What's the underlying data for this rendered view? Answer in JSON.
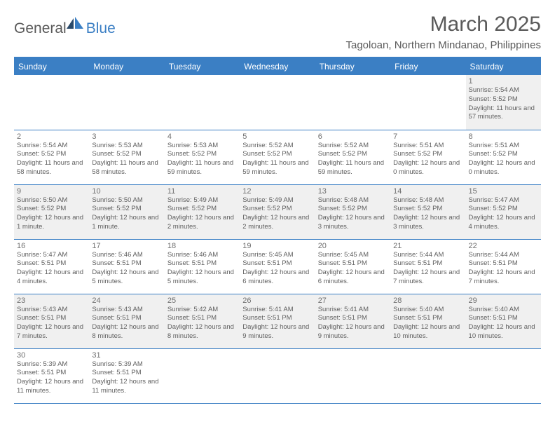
{
  "logo": {
    "text1": "General",
    "text2": "Blue"
  },
  "header": {
    "title": "March 2025",
    "location": "Tagoloan, Northern Mindanao, Philippines"
  },
  "colors": {
    "brand": "#3b7fc4",
    "header_bg": "#3b7fc4",
    "header_fg": "#ffffff",
    "row_alt_bg": "#f0f0f0",
    "text": "#5a5a5a",
    "cell_text": "#606060"
  },
  "calendar": {
    "day_headers": [
      "Sunday",
      "Monday",
      "Tuesday",
      "Wednesday",
      "Thursday",
      "Friday",
      "Saturday"
    ],
    "weeks": [
      [
        null,
        null,
        null,
        null,
        null,
        null,
        {
          "n": "1",
          "sunrise": "Sunrise: 5:54 AM",
          "sunset": "Sunset: 5:52 PM",
          "daylight": "Daylight: 11 hours and 57 minutes."
        }
      ],
      [
        {
          "n": "2",
          "sunrise": "Sunrise: 5:54 AM",
          "sunset": "Sunset: 5:52 PM",
          "daylight": "Daylight: 11 hours and 58 minutes."
        },
        {
          "n": "3",
          "sunrise": "Sunrise: 5:53 AM",
          "sunset": "Sunset: 5:52 PM",
          "daylight": "Daylight: 11 hours and 58 minutes."
        },
        {
          "n": "4",
          "sunrise": "Sunrise: 5:53 AM",
          "sunset": "Sunset: 5:52 PM",
          "daylight": "Daylight: 11 hours and 59 minutes."
        },
        {
          "n": "5",
          "sunrise": "Sunrise: 5:52 AM",
          "sunset": "Sunset: 5:52 PM",
          "daylight": "Daylight: 11 hours and 59 minutes."
        },
        {
          "n": "6",
          "sunrise": "Sunrise: 5:52 AM",
          "sunset": "Sunset: 5:52 PM",
          "daylight": "Daylight: 11 hours and 59 minutes."
        },
        {
          "n": "7",
          "sunrise": "Sunrise: 5:51 AM",
          "sunset": "Sunset: 5:52 PM",
          "daylight": "Daylight: 12 hours and 0 minutes."
        },
        {
          "n": "8",
          "sunrise": "Sunrise: 5:51 AM",
          "sunset": "Sunset: 5:52 PM",
          "daylight": "Daylight: 12 hours and 0 minutes."
        }
      ],
      [
        {
          "n": "9",
          "sunrise": "Sunrise: 5:50 AM",
          "sunset": "Sunset: 5:52 PM",
          "daylight": "Daylight: 12 hours and 1 minute."
        },
        {
          "n": "10",
          "sunrise": "Sunrise: 5:50 AM",
          "sunset": "Sunset: 5:52 PM",
          "daylight": "Daylight: 12 hours and 1 minute."
        },
        {
          "n": "11",
          "sunrise": "Sunrise: 5:49 AM",
          "sunset": "Sunset: 5:52 PM",
          "daylight": "Daylight: 12 hours and 2 minutes."
        },
        {
          "n": "12",
          "sunrise": "Sunrise: 5:49 AM",
          "sunset": "Sunset: 5:52 PM",
          "daylight": "Daylight: 12 hours and 2 minutes."
        },
        {
          "n": "13",
          "sunrise": "Sunrise: 5:48 AM",
          "sunset": "Sunset: 5:52 PM",
          "daylight": "Daylight: 12 hours and 3 minutes."
        },
        {
          "n": "14",
          "sunrise": "Sunrise: 5:48 AM",
          "sunset": "Sunset: 5:52 PM",
          "daylight": "Daylight: 12 hours and 3 minutes."
        },
        {
          "n": "15",
          "sunrise": "Sunrise: 5:47 AM",
          "sunset": "Sunset: 5:52 PM",
          "daylight": "Daylight: 12 hours and 4 minutes."
        }
      ],
      [
        {
          "n": "16",
          "sunrise": "Sunrise: 5:47 AM",
          "sunset": "Sunset: 5:51 PM",
          "daylight": "Daylight: 12 hours and 4 minutes."
        },
        {
          "n": "17",
          "sunrise": "Sunrise: 5:46 AM",
          "sunset": "Sunset: 5:51 PM",
          "daylight": "Daylight: 12 hours and 5 minutes."
        },
        {
          "n": "18",
          "sunrise": "Sunrise: 5:46 AM",
          "sunset": "Sunset: 5:51 PM",
          "daylight": "Daylight: 12 hours and 5 minutes."
        },
        {
          "n": "19",
          "sunrise": "Sunrise: 5:45 AM",
          "sunset": "Sunset: 5:51 PM",
          "daylight": "Daylight: 12 hours and 6 minutes."
        },
        {
          "n": "20",
          "sunrise": "Sunrise: 5:45 AM",
          "sunset": "Sunset: 5:51 PM",
          "daylight": "Daylight: 12 hours and 6 minutes."
        },
        {
          "n": "21",
          "sunrise": "Sunrise: 5:44 AM",
          "sunset": "Sunset: 5:51 PM",
          "daylight": "Daylight: 12 hours and 7 minutes."
        },
        {
          "n": "22",
          "sunrise": "Sunrise: 5:44 AM",
          "sunset": "Sunset: 5:51 PM",
          "daylight": "Daylight: 12 hours and 7 minutes."
        }
      ],
      [
        {
          "n": "23",
          "sunrise": "Sunrise: 5:43 AM",
          "sunset": "Sunset: 5:51 PM",
          "daylight": "Daylight: 12 hours and 7 minutes."
        },
        {
          "n": "24",
          "sunrise": "Sunrise: 5:43 AM",
          "sunset": "Sunset: 5:51 PM",
          "daylight": "Daylight: 12 hours and 8 minutes."
        },
        {
          "n": "25",
          "sunrise": "Sunrise: 5:42 AM",
          "sunset": "Sunset: 5:51 PM",
          "daylight": "Daylight: 12 hours and 8 minutes."
        },
        {
          "n": "26",
          "sunrise": "Sunrise: 5:41 AM",
          "sunset": "Sunset: 5:51 PM",
          "daylight": "Daylight: 12 hours and 9 minutes."
        },
        {
          "n": "27",
          "sunrise": "Sunrise: 5:41 AM",
          "sunset": "Sunset: 5:51 PM",
          "daylight": "Daylight: 12 hours and 9 minutes."
        },
        {
          "n": "28",
          "sunrise": "Sunrise: 5:40 AM",
          "sunset": "Sunset: 5:51 PM",
          "daylight": "Daylight: 12 hours and 10 minutes."
        },
        {
          "n": "29",
          "sunrise": "Sunrise: 5:40 AM",
          "sunset": "Sunset: 5:51 PM",
          "daylight": "Daylight: 12 hours and 10 minutes."
        }
      ],
      [
        {
          "n": "30",
          "sunrise": "Sunrise: 5:39 AM",
          "sunset": "Sunset: 5:51 PM",
          "daylight": "Daylight: 12 hours and 11 minutes."
        },
        {
          "n": "31",
          "sunrise": "Sunrise: 5:39 AM",
          "sunset": "Sunset: 5:51 PM",
          "daylight": "Daylight: 12 hours and 11 minutes."
        },
        null,
        null,
        null,
        null,
        null
      ]
    ]
  }
}
